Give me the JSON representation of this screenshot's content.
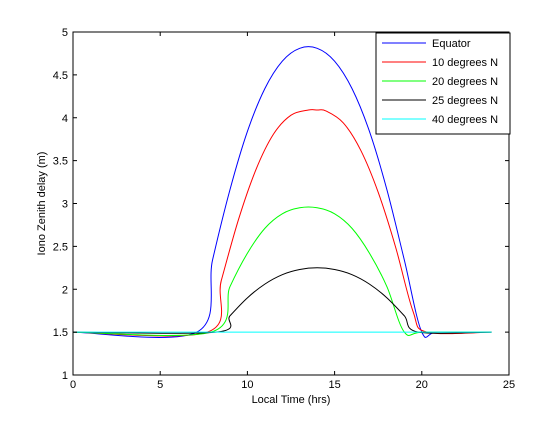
{
  "chart_data": {
    "type": "line",
    "title": "",
    "xlabel": "Local Time (hrs)",
    "ylabel": "Iono Zenith delay (m)",
    "xlim": [
      0,
      25
    ],
    "ylim": [
      1,
      5
    ],
    "xticks": [
      0,
      5,
      10,
      15,
      20,
      25
    ],
    "yticks": [
      1,
      1.5,
      2,
      2.5,
      3,
      3.5,
      4,
      4.5,
      5
    ],
    "ytick_labels": [
      "1",
      "1.5",
      "2",
      "2.5",
      "3",
      "3.5",
      "4",
      "4.5",
      "5"
    ],
    "grid": false,
    "legend_position": "top-right",
    "series": [
      {
        "name": "Equator",
        "color": "#0000ff",
        "x": [
          0,
          7.1,
          8,
          9,
          10,
          11,
          12,
          13,
          14,
          15,
          16,
          17,
          18,
          19,
          20,
          20.9,
          24
        ],
        "y": [
          1.5,
          1.5,
          2.34,
          3.16,
          3.84,
          4.34,
          4.66,
          4.81,
          4.81,
          4.66,
          4.34,
          3.84,
          3.16,
          2.34,
          1.5,
          1.5,
          1.5
        ]
      },
      {
        "name": "10 degrees N",
        "color": "#ff0000",
        "x": [
          0,
          7.7,
          8.5,
          9.5,
          10.5,
          11.5,
          12.5,
          13.5,
          14,
          14.5,
          15.5,
          16.5,
          17.5,
          18.5,
          19.5,
          20.3,
          24
        ],
        "y": [
          1.5,
          1.5,
          2.1,
          2.82,
          3.4,
          3.81,
          4.03,
          4.09,
          4.09,
          4.08,
          3.94,
          3.62,
          3.13,
          2.49,
          1.74,
          1.5,
          1.5
        ]
      },
      {
        "name": "20 degrees N",
        "color": "#00ff00",
        "x": [
          0,
          7.9,
          9,
          10,
          11,
          12,
          13,
          14,
          15,
          16,
          17,
          18,
          19,
          20.1,
          24
        ],
        "y": [
          1.5,
          1.5,
          2.03,
          2.42,
          2.71,
          2.88,
          2.95,
          2.95,
          2.88,
          2.71,
          2.42,
          2.03,
          1.5,
          1.5,
          1.5
        ]
      },
      {
        "name": "25 degrees N",
        "color": "#000000",
        "x": [
          0,
          8.2,
          9,
          10,
          11,
          12,
          13,
          14,
          15,
          16,
          17,
          18,
          19,
          19.8,
          24
        ],
        "y": [
          1.5,
          1.5,
          1.69,
          1.9,
          2.06,
          2.17,
          2.23,
          2.25,
          2.23,
          2.17,
          2.06,
          1.9,
          1.69,
          1.5,
          1.5
        ]
      },
      {
        "name": "40 degrees N",
        "color": "#00ffff",
        "x": [
          0,
          24
        ],
        "y": [
          1.5,
          1.5
        ]
      }
    ]
  }
}
